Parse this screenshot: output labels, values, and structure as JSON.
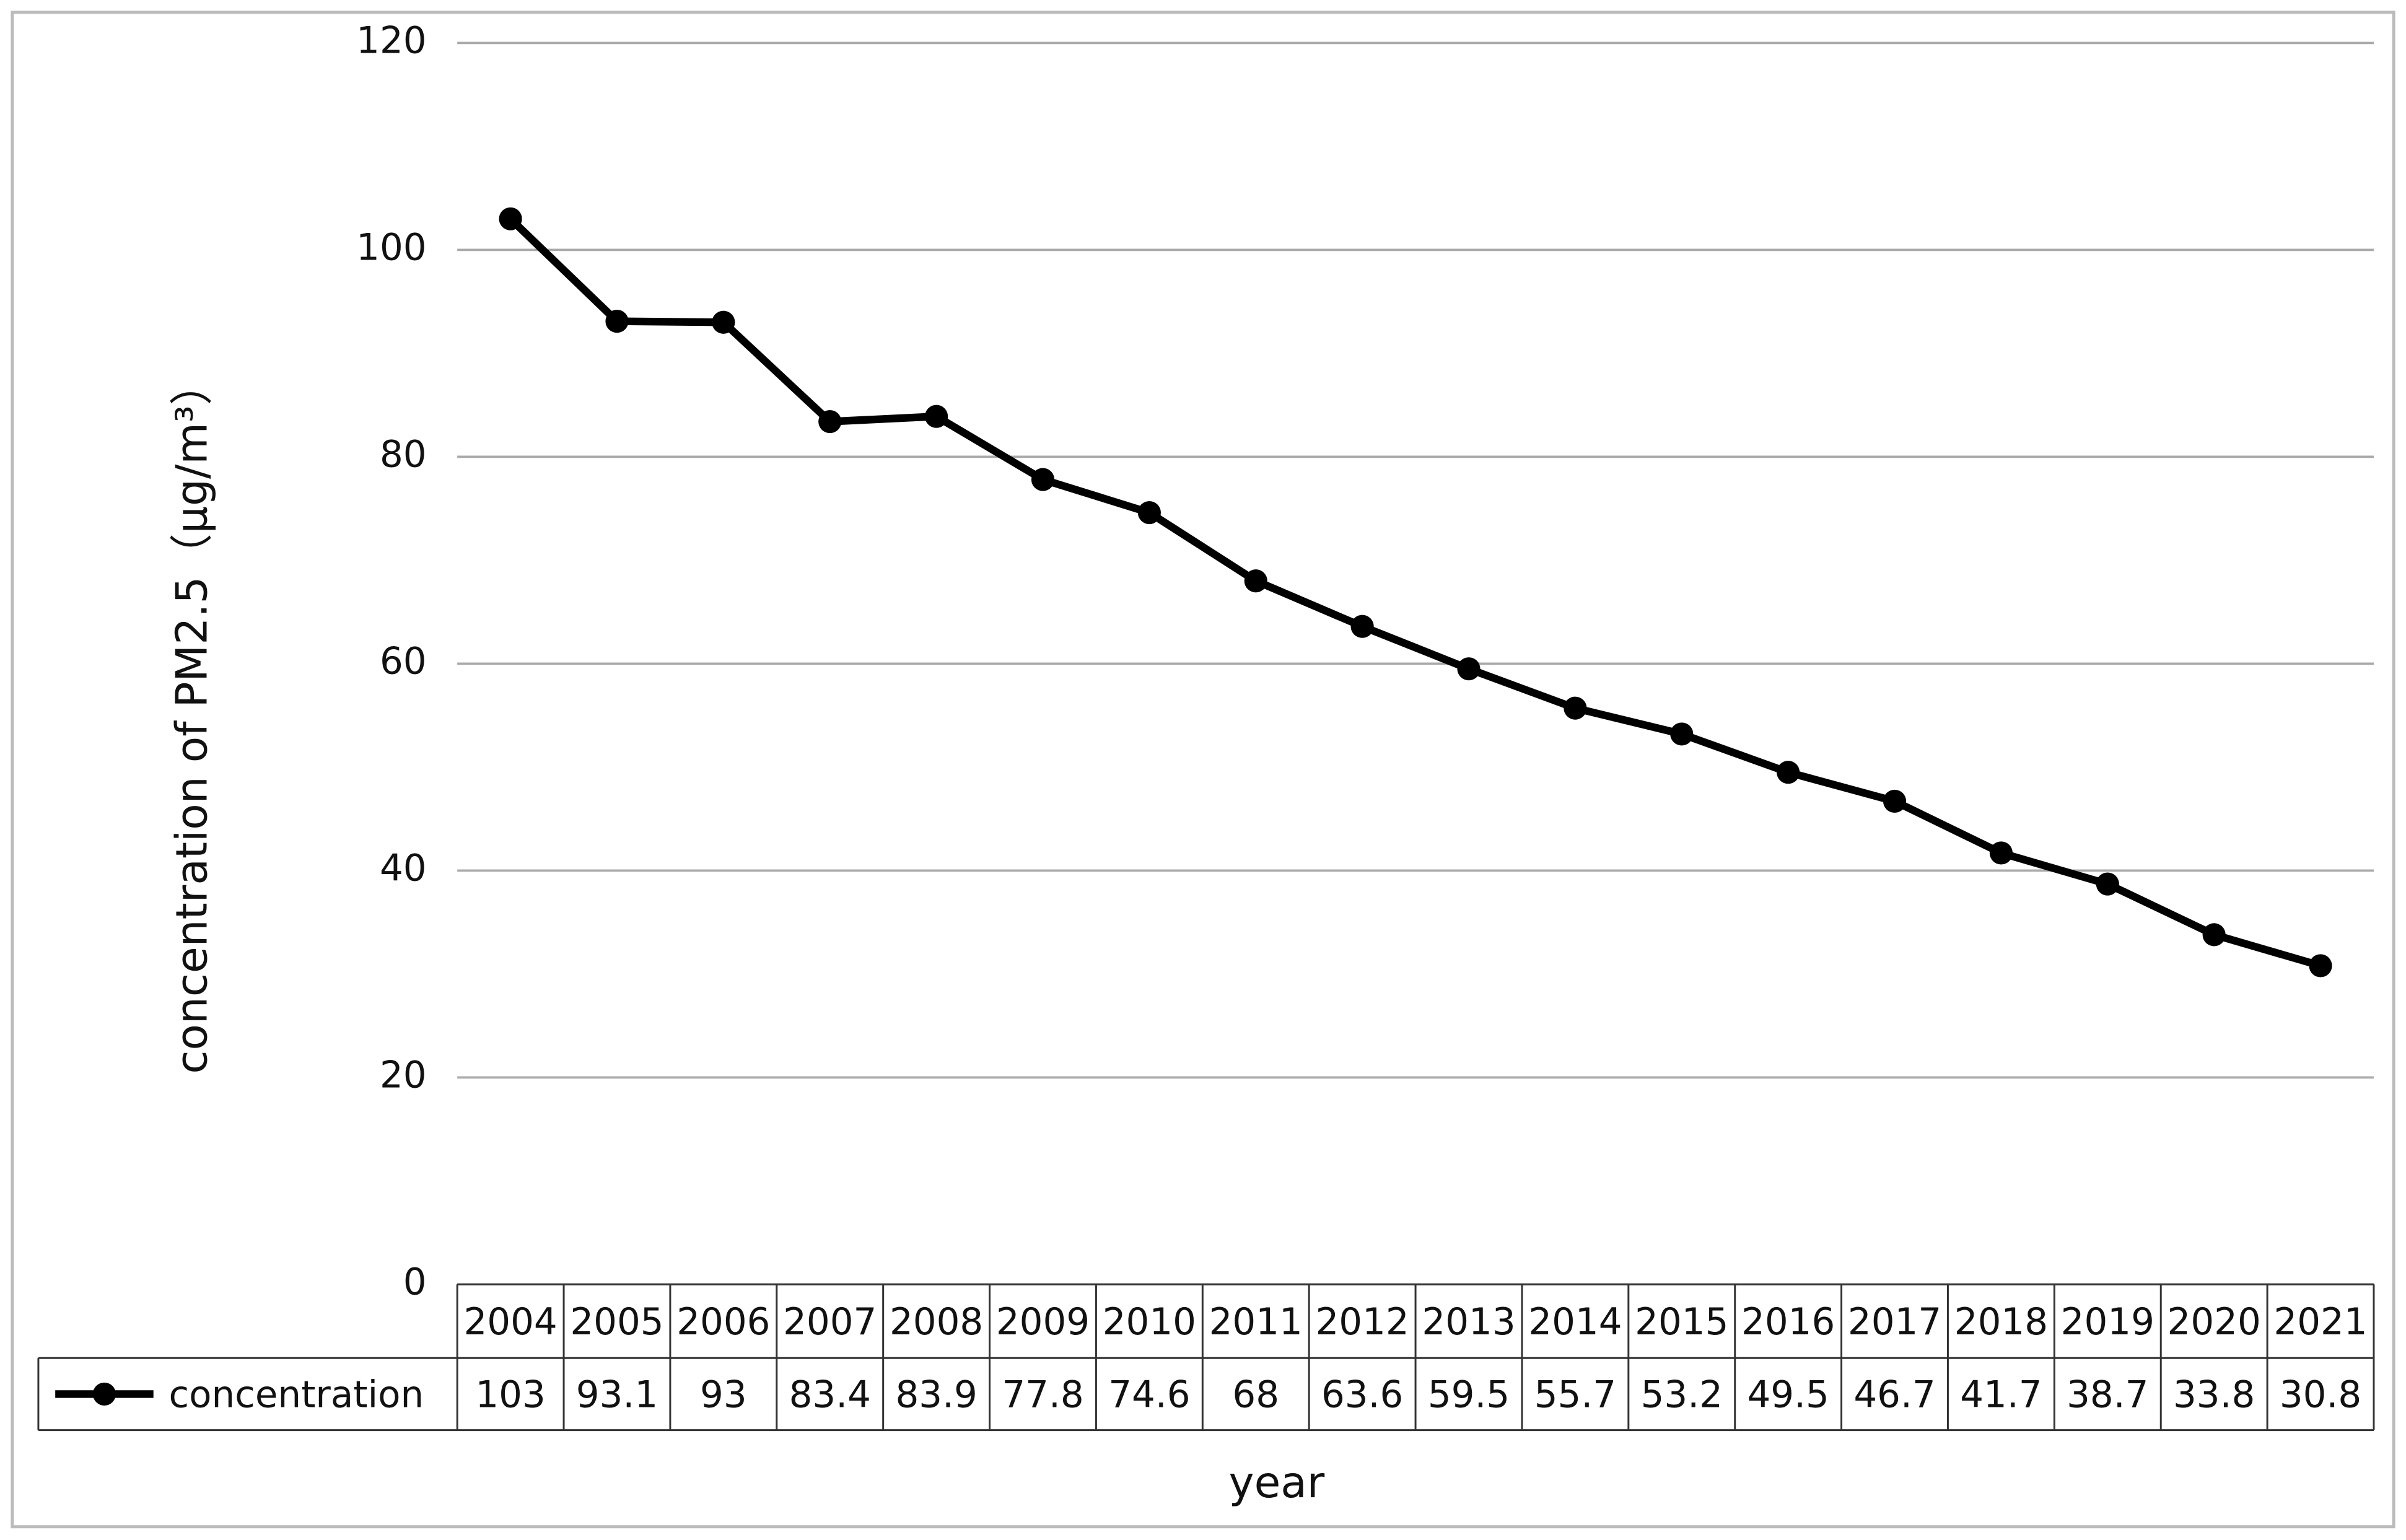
{
  "chart_data": {
    "type": "line",
    "y_label": "concentration of PM2.5（μg/m³）",
    "x_label": "year",
    "categories": [
      "2004",
      "2005",
      "2006",
      "2007",
      "2008",
      "2009",
      "2010",
      "2011",
      "2012",
      "2013",
      "2014",
      "2015",
      "2016",
      "2017",
      "2018",
      "2019",
      "2020",
      "2021"
    ],
    "series": [
      {
        "name": "concentration",
        "color": "#000000",
        "values": [
          103,
          93.1,
          93,
          83.4,
          83.9,
          77.8,
          74.6,
          68,
          63.6,
          59.5,
          55.7,
          53.2,
          49.5,
          46.7,
          41.7,
          38.7,
          33.8,
          30.8
        ]
      }
    ],
    "ylim": [
      0,
      120
    ],
    "yticks": [
      0,
      20,
      40,
      60,
      80,
      100,
      120
    ],
    "grid": true
  }
}
